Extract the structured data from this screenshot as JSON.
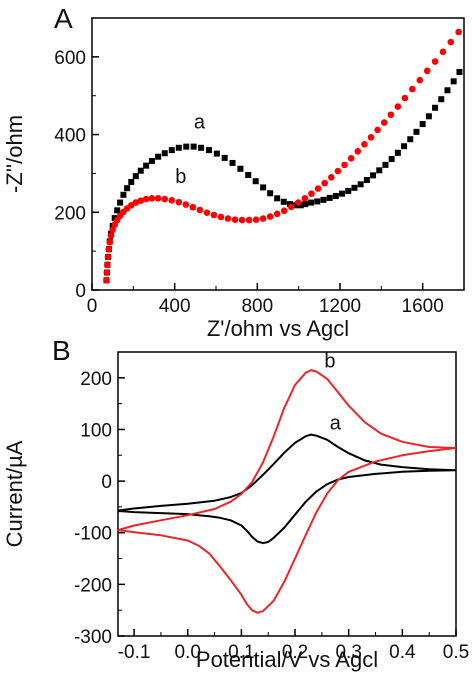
{
  "chart_data": [
    {
      "type": "scatter",
      "panel_label": "A",
      "xlabel": "Z'/ohm vs Agcl",
      "ylabel": "-Z''/ohm",
      "xlim": [
        0,
        1800
      ],
      "ylim": [
        0,
        700
      ],
      "xticks": [
        0,
        400,
        800,
        1200,
        1600
      ],
      "yticks": [
        0,
        200,
        400,
        600
      ],
      "grid": false,
      "series": [
        {
          "name": "a",
          "color": "#000000",
          "marker": "square",
          "x": [
            70,
            72,
            75,
            78,
            82,
            86,
            92,
            100,
            110,
            122,
            136,
            152,
            170,
            190,
            212,
            236,
            262,
            290,
            320,
            352,
            386,
            420,
            456,
            492,
            528,
            566,
            604,
            642,
            680,
            718,
            756,
            792,
            828,
            862,
            896,
            928,
            958,
            986,
            1010,
            1032,
            1060,
            1090,
            1120,
            1150,
            1180,
            1210,
            1240,
            1270,
            1300,
            1330,
            1360,
            1390,
            1420,
            1450,
            1480,
            1510,
            1540,
            1570,
            1600,
            1630,
            1660,
            1690,
            1720,
            1750,
            1778
          ],
          "y": [
            25,
            45,
            65,
            85,
            105,
            125,
            145,
            165,
            185,
            205,
            225,
            245,
            262,
            278,
            293,
            307,
            320,
            332,
            343,
            352,
            360,
            366,
            369,
            369,
            366,
            360,
            351,
            340,
            327,
            312,
            296,
            280,
            264,
            249,
            236,
            227,
            221,
            218,
            218,
            221,
            225,
            228,
            232,
            237,
            242,
            248,
            255,
            263,
            272,
            283,
            295,
            308,
            322,
            337,
            353,
            370,
            388,
            407,
            427,
            447,
            469,
            491,
            514,
            537,
            561
          ]
        },
        {
          "name": "b",
          "color": "#ff0000",
          "marker": "circle",
          "x": [
            70,
            72,
            74,
            77,
            81,
            86,
            92,
            100,
            110,
            122,
            136,
            152,
            170,
            190,
            212,
            236,
            262,
            290,
            320,
            352,
            386,
            420,
            454,
            488,
            522,
            556,
            590,
            624,
            658,
            692,
            726,
            760,
            794,
            828,
            862,
            896,
            930,
            964,
            998,
            1030,
            1062,
            1094,
            1126,
            1158,
            1190,
            1222,
            1254,
            1286,
            1318,
            1350,
            1382,
            1414,
            1446,
            1480,
            1514,
            1550,
            1586,
            1622,
            1660,
            1698,
            1736,
            1774
          ],
          "y": [
            25,
            45,
            65,
            85,
            105,
            123,
            140,
            155,
            168,
            180,
            191,
            201,
            210,
            218,
            225,
            230,
            234,
            236,
            236,
            234,
            231,
            226,
            220,
            213,
            206,
            199,
            193,
            188,
            184,
            181,
            180,
            180,
            181,
            184,
            189,
            196,
            204,
            214,
            225,
            236,
            248,
            261,
            275,
            290,
            306,
            322,
            339,
            357,
            375,
            393,
            412,
            431,
            451,
            472,
            494,
            517,
            540,
            564,
            588,
            613,
            638,
            664
          ]
        }
      ],
      "annotations": [
        {
          "text": "a",
          "x": 520,
          "y": 415
        },
        {
          "text": "b",
          "x": 430,
          "y": 275
        }
      ]
    },
    {
      "type": "line",
      "panel_label": "B",
      "xlabel": "Potential/V vs Agcl",
      "ylabel": "Current/µA",
      "xlim": [
        -0.13,
        0.5
      ],
      "ylim": [
        -300,
        250
      ],
      "xticks": [
        -0.1,
        0.0,
        0.1,
        0.2,
        0.3,
        0.4,
        0.5
      ],
      "xtick_labels": [
        "-0.1",
        "0.0",
        "0.1",
        "0.2",
        "0.3",
        "0.4",
        "0.5"
      ],
      "yticks": [
        -300,
        -200,
        -100,
        0,
        100,
        200
      ],
      "grid": false,
      "series": [
        {
          "name": "a",
          "color": "#000000",
          "x": [
            -0.13,
            -0.1,
            -0.05,
            0.0,
            0.05,
            0.08,
            0.1,
            0.12,
            0.14,
            0.16,
            0.18,
            0.2,
            0.22,
            0.23,
            0.24,
            0.26,
            0.28,
            0.3,
            0.33,
            0.36,
            0.4,
            0.45,
            0.5,
            0.5,
            0.45,
            0.4,
            0.35,
            0.3,
            0.28,
            0.26,
            0.24,
            0.22,
            0.2,
            0.18,
            0.16,
            0.15,
            0.14,
            0.13,
            0.12,
            0.11,
            0.1,
            0.08,
            0.06,
            0.04,
            0.02,
            0.0,
            -0.05,
            -0.1,
            -0.13
          ],
          "y": [
            -57,
            -53,
            -48,
            -44,
            -38,
            -31,
            -23,
            -8,
            12,
            33,
            55,
            74,
            87,
            90,
            88,
            80,
            66,
            54,
            40,
            32,
            27,
            23,
            21,
            21,
            20,
            18,
            14,
            8,
            3,
            -6,
            -20,
            -40,
            -65,
            -90,
            -110,
            -118,
            -120,
            -117,
            -108,
            -96,
            -86,
            -76,
            -71,
            -68,
            -66,
            -64,
            -62,
            -60,
            -58
          ]
        },
        {
          "name": "b",
          "color": "#e8262b",
          "x": [
            -0.13,
            -0.1,
            -0.05,
            0.0,
            0.05,
            0.08,
            0.1,
            0.12,
            0.14,
            0.16,
            0.18,
            0.2,
            0.22,
            0.23,
            0.24,
            0.26,
            0.28,
            0.3,
            0.33,
            0.36,
            0.4,
            0.45,
            0.5,
            0.5,
            0.45,
            0.4,
            0.35,
            0.3,
            0.28,
            0.26,
            0.24,
            0.22,
            0.2,
            0.18,
            0.16,
            0.14,
            0.13,
            0.12,
            0.11,
            0.1,
            0.08,
            0.06,
            0.04,
            0.02,
            0.0,
            -0.05,
            -0.1,
            -0.13
          ],
          "y": [
            -95,
            -86,
            -76,
            -66,
            -54,
            -40,
            -25,
            -2,
            36,
            86,
            142,
            186,
            210,
            215,
            212,
            198,
            172,
            146,
            114,
            92,
            76,
            66,
            64,
            64,
            58,
            50,
            38,
            18,
            2,
            -24,
            -60,
            -104,
            -150,
            -195,
            -232,
            -252,
            -255,
            -250,
            -238,
            -220,
            -192,
            -165,
            -140,
            -125,
            -115,
            -105,
            -99,
            -95
          ]
        }
      ],
      "annotations": [
        {
          "text": "b",
          "x": 0.265,
          "y": 220
        },
        {
          "text": "a",
          "x": 0.275,
          "y": 100
        }
      ]
    }
  ]
}
